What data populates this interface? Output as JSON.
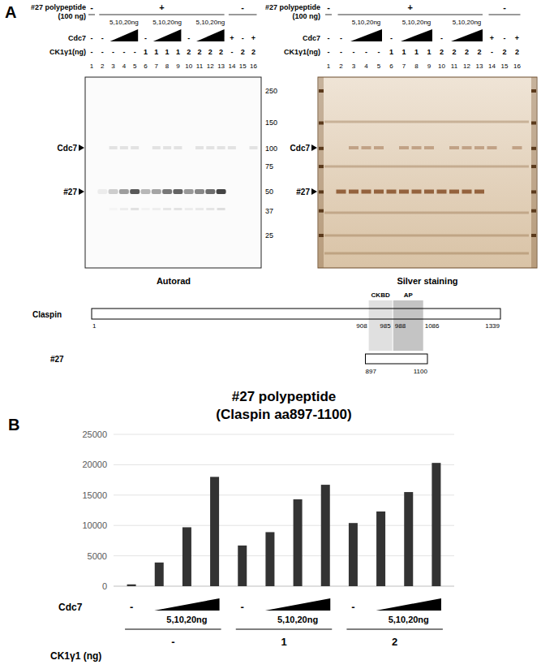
{
  "panel_a": {
    "label": "A",
    "header": {
      "polypeptide_label": [
        "#27 polypeptide",
        "(100 ng)"
      ],
      "polypeptide_groups": [
        {
          "label": "-",
          "lanes": [
            1,
            1
          ]
        },
        {
          "label": "+",
          "lanes": [
            2,
            13
          ]
        },
        {
          "label": "-",
          "lanes": [
            14,
            16
          ]
        }
      ],
      "dose_label": "5,10,20ng",
      "dose_ramps": [
        [
          3,
          5
        ],
        [
          7,
          9
        ],
        [
          11,
          13
        ]
      ],
      "cdc7_label": "Cdc7",
      "cdc7": [
        "-",
        "-",
        null,
        null,
        null,
        "-",
        null,
        null,
        null,
        "-",
        null,
        null,
        null,
        "+",
        "-",
        "+"
      ],
      "ck1_label": "CK1γ1(ng)",
      "ck1": [
        "-",
        "-",
        "-",
        "-",
        "-",
        "1",
        "1",
        "1",
        "1",
        "2",
        "2",
        "2",
        "2",
        "-",
        "2",
        "2"
      ],
      "lanes": [
        1,
        2,
        3,
        4,
        5,
        6,
        7,
        8,
        9,
        10,
        11,
        12,
        13,
        14,
        15,
        16
      ]
    },
    "gels": [
      {
        "caption": "Autorad",
        "band_labels": [
          "Cdc7",
          "#27"
        ],
        "mw_markers": [
          250,
          150,
          100,
          75,
          50,
          37,
          25
        ]
      },
      {
        "caption": "Silver staining",
        "band_labels": [
          "Cdc7",
          "#27"
        ]
      }
    ],
    "schematic": {
      "protein": "Claspin",
      "start": 1,
      "length": 1339,
      "domains": [
        {
          "label": "CKBD",
          "start": 908,
          "end": 985
        },
        {
          "label": "AP",
          "start": 988,
          "end": 1086
        }
      ],
      "fragment": {
        "label": "#27",
        "start": 897,
        "end": 1100
      }
    }
  },
  "chart_data": {
    "type": "bar",
    "panel_label": "B",
    "title": "#27 polypeptide",
    "subtitle": "(Claspin aa897-1100)",
    "categories": [
      "-",
      null,
      null,
      null,
      "-",
      null,
      null,
      null,
      "-",
      null,
      null,
      null
    ],
    "values": [
      300,
      3900,
      9700,
      18000,
      6700,
      8900,
      14300,
      16700,
      10400,
      12300,
      15500,
      20300
    ],
    "color": "#333333",
    "ylim": [
      0,
      25000
    ],
    "yticks": [
      0,
      5000,
      10000,
      15000,
      20000,
      25000
    ],
    "grid": true,
    "x_rows": {
      "cdc7_label": "Cdc7",
      "dose_label": "5,10,20ng",
      "ck1_label": "CK1γ1 (ng)",
      "ck1_groups": [
        "-",
        "1",
        "2"
      ]
    }
  }
}
